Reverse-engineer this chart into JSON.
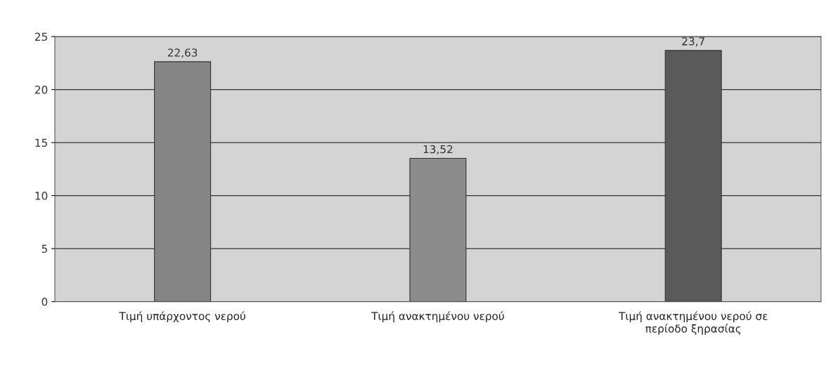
{
  "chart_data": {
    "type": "bar",
    "categories": [
      "Τιμή υπάρχοντος νερού",
      "Τιμή ανακτημένου νερού",
      "Τιμή ανακτημένου νερού σε\nπερίοδο ξηρασίας"
    ],
    "values": [
      22.63,
      13.52,
      23.7
    ],
    "colors": [
      "#858585",
      "#8c8c8c",
      "#5a5a5a"
    ],
    "value_labels": [
      "22,63",
      "13,52",
      "23,7"
    ],
    "ylim": [
      0,
      25
    ],
    "yticks": [
      0,
      5,
      10,
      15,
      20,
      25
    ],
    "grid": "y"
  }
}
